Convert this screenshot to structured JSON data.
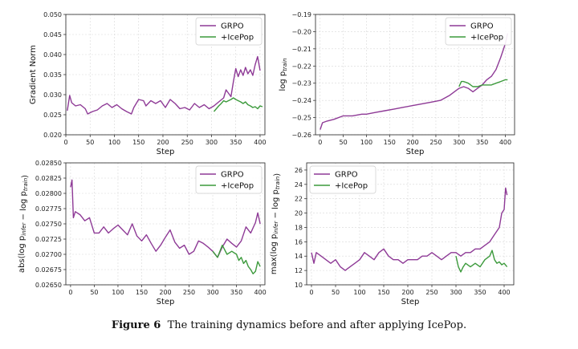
{
  "caption": {
    "label": "Figure 6",
    "text": "The training dynamics before and after applying IcePop."
  },
  "colors": {
    "grpo": "#8e3a96",
    "icepop": "#3c9a3c"
  },
  "chart_data": [
    {
      "type": "line",
      "xlabel": "Step",
      "ylabel": "Gradient Norm",
      "xlim": [
        0,
        410
      ],
      "ylim": [
        0.02,
        0.05
      ],
      "xticks": [
        0,
        50,
        100,
        150,
        200,
        250,
        300,
        350,
        400
      ],
      "yticks": [
        0.02,
        0.025,
        0.03,
        0.035,
        0.04,
        0.045,
        0.05
      ],
      "ytick_labels": [
        "0.020",
        "0.025",
        "0.030",
        "0.035",
        "0.040",
        "0.045",
        "0.050"
      ],
      "legend": "top-right",
      "series": [
        {
          "name": "GRPO",
          "color": "#8e3a96",
          "x": [
            3,
            8,
            12,
            20,
            30,
            40,
            45,
            55,
            65,
            75,
            85,
            95,
            105,
            115,
            125,
            135,
            140,
            150,
            160,
            165,
            175,
            185,
            195,
            205,
            215,
            225,
            235,
            245,
            255,
            265,
            275,
            285,
            295,
            305,
            315,
            325,
            330,
            340,
            345,
            350,
            355,
            360,
            365,
            370,
            375,
            380,
            385,
            390,
            395,
            400
          ],
          "y": [
            0.026,
            0.0298,
            0.028,
            0.0272,
            0.0275,
            0.0265,
            0.0252,
            0.0258,
            0.0262,
            0.0272,
            0.0278,
            0.0268,
            0.0275,
            0.0265,
            0.0258,
            0.0252,
            0.0268,
            0.0288,
            0.0285,
            0.0272,
            0.0285,
            0.0278,
            0.0285,
            0.0268,
            0.0288,
            0.0278,
            0.0265,
            0.0268,
            0.0262,
            0.0278,
            0.0268,
            0.0275,
            0.0265,
            0.0272,
            0.0282,
            0.0292,
            0.0312,
            0.0295,
            0.0332,
            0.0365,
            0.0345,
            0.0362,
            0.0348,
            0.0368,
            0.0352,
            0.0362,
            0.0348,
            0.0375,
            0.0395,
            0.036
          ]
        },
        {
          "name": "+IcePop",
          "color": "#3c9a3c",
          "x": [
            305,
            310,
            315,
            320,
            325,
            330,
            340,
            345,
            350,
            355,
            360,
            365,
            370,
            375,
            380,
            385,
            390,
            395,
            400,
            405
          ],
          "y": [
            0.0258,
            0.0265,
            0.0272,
            0.0278,
            0.0285,
            0.0282,
            0.0288,
            0.0292,
            0.0288,
            0.0285,
            0.0282,
            0.0278,
            0.0282,
            0.0275,
            0.0272,
            0.0268,
            0.027,
            0.0265,
            0.0272,
            0.027
          ]
        }
      ]
    },
    {
      "type": "line",
      "xlabel": "Step",
      "ylabel": "log p_train",
      "xlim": [
        -10,
        420
      ],
      "ylim": [
        -0.26,
        -0.19
      ],
      "xticks": [
        0,
        50,
        100,
        150,
        200,
        250,
        300,
        350,
        400
      ],
      "yticks": [
        -0.26,
        -0.25,
        -0.24,
        -0.23,
        -0.22,
        -0.21,
        -0.2,
        -0.19
      ],
      "ytick_labels": [
        "−0.26",
        "−0.25",
        "−0.24",
        "−0.23",
        "−0.22",
        "−0.21",
        "−0.20",
        "−0.19"
      ],
      "legend": "top-right",
      "series": [
        {
          "name": "GRPO",
          "color": "#8e3a96",
          "x": [
            0,
            5,
            15,
            30,
            50,
            70,
            90,
            100,
            120,
            140,
            160,
            180,
            200,
            220,
            240,
            260,
            280,
            300,
            310,
            320,
            330,
            340,
            350,
            360,
            370,
            380,
            390,
            400,
            405
          ],
          "y": [
            -0.257,
            -0.253,
            -0.252,
            -0.251,
            -0.249,
            -0.249,
            -0.248,
            -0.248,
            -0.247,
            -0.246,
            -0.245,
            -0.244,
            -0.243,
            -0.242,
            -0.241,
            -0.24,
            -0.237,
            -0.233,
            -0.232,
            -0.233,
            -0.235,
            -0.233,
            -0.231,
            -0.228,
            -0.226,
            -0.222,
            -0.215,
            -0.207,
            -0.201
          ]
        },
        {
          "name": "+IcePop",
          "color": "#3c9a3c",
          "x": [
            300,
            305,
            310,
            320,
            330,
            340,
            350,
            360,
            370,
            380,
            390,
            400,
            405
          ],
          "y": [
            -0.232,
            -0.229,
            -0.229,
            -0.23,
            -0.232,
            -0.232,
            -0.231,
            -0.231,
            -0.231,
            -0.23,
            -0.229,
            -0.228,
            -0.228
          ]
        }
      ]
    },
    {
      "type": "line",
      "xlabel": "Step",
      "ylabel": "abs(log p_infer − log p_train)",
      "xlim": [
        -10,
        410
      ],
      "ylim": [
        0.0265,
        0.0285
      ],
      "xticks": [
        0,
        50,
        100,
        150,
        200,
        250,
        300,
        350,
        400
      ],
      "yticks": [
        0.0265,
        0.02675,
        0.027,
        0.02725,
        0.0275,
        0.02775,
        0.028,
        0.02825,
        0.0285
      ],
      "ytick_labels": [
        "0.02650",
        "0.02675",
        "0.02700",
        "0.02725",
        "0.02750",
        "0.02775",
        "0.02800",
        "0.02825",
        "0.02850"
      ],
      "legend": "top-right",
      "series": [
        {
          "name": "GRPO",
          "color": "#8e3a96",
          "x": [
            0,
            3,
            6,
            10,
            20,
            30,
            40,
            50,
            60,
            70,
            80,
            90,
            100,
            110,
            120,
            130,
            140,
            150,
            160,
            170,
            180,
            190,
            200,
            210,
            220,
            230,
            240,
            250,
            260,
            270,
            280,
            290,
            300,
            310,
            320,
            330,
            340,
            350,
            360,
            370,
            380,
            390,
            395,
            400
          ],
          "y": [
            0.0281,
            0.02822,
            0.0276,
            0.0277,
            0.02765,
            0.02755,
            0.0276,
            0.02735,
            0.02735,
            0.02745,
            0.02735,
            0.02742,
            0.02748,
            0.0274,
            0.02732,
            0.0275,
            0.0273,
            0.02722,
            0.02732,
            0.02718,
            0.02705,
            0.02715,
            0.02728,
            0.0274,
            0.0272,
            0.0271,
            0.02715,
            0.027,
            0.02705,
            0.02722,
            0.02718,
            0.02712,
            0.02705,
            0.02695,
            0.02712,
            0.02725,
            0.02718,
            0.02712,
            0.02722,
            0.02745,
            0.02735,
            0.02752,
            0.02768,
            0.0275
          ]
        },
        {
          "name": "+IcePop",
          "color": "#3c9a3c",
          "x": [
            300,
            310,
            320,
            330,
            340,
            350,
            355,
            360,
            365,
            370,
            375,
            380,
            385,
            390,
            395,
            400
          ],
          "y": [
            0.02705,
            0.02695,
            0.02715,
            0.027,
            0.02705,
            0.027,
            0.0269,
            0.02695,
            0.02685,
            0.0269,
            0.0268,
            0.02675,
            0.02668,
            0.02672,
            0.02688,
            0.0268
          ]
        }
      ]
    },
    {
      "type": "line",
      "xlabel": "Step",
      "ylabel": "max(log p_infer − log p_train)",
      "xlim": [
        -10,
        420
      ],
      "ylim": [
        10,
        27
      ],
      "xticks": [
        0,
        50,
        100,
        150,
        200,
        250,
        300,
        350,
        400
      ],
      "yticks": [
        10,
        12,
        14,
        16,
        18,
        20,
        22,
        24,
        26
      ],
      "ytick_labels": [
        "10",
        "12",
        "14",
        "16",
        "18",
        "20",
        "22",
        "24",
        "26"
      ],
      "legend": "top-left",
      "series": [
        {
          "name": "GRPO",
          "color": "#8e3a96",
          "x": [
            0,
            5,
            10,
            20,
            30,
            40,
            50,
            60,
            70,
            80,
            90,
            100,
            110,
            120,
            130,
            140,
            150,
            160,
            170,
            180,
            190,
            200,
            210,
            220,
            230,
            240,
            250,
            260,
            270,
            280,
            290,
            300,
            310,
            320,
            330,
            340,
            350,
            360,
            370,
            380,
            390,
            395,
            400,
            403,
            406
          ],
          "y": [
            14.5,
            13.0,
            14.5,
            14.0,
            13.5,
            13.0,
            13.5,
            12.5,
            12.0,
            12.5,
            13.0,
            13.5,
            14.5,
            14.0,
            13.5,
            14.5,
            15.0,
            14.0,
            13.5,
            13.5,
            13.0,
            13.5,
            13.5,
            13.5,
            14.0,
            14.0,
            14.5,
            14.0,
            13.5,
            14.0,
            14.5,
            14.5,
            14.0,
            14.5,
            14.5,
            15.0,
            15.0,
            15.5,
            16.0,
            17.0,
            18.0,
            20.0,
            20.5,
            23.5,
            22.5
          ]
        },
        {
          "name": "+IcePop",
          "color": "#3c9a3c",
          "x": [
            300,
            305,
            310,
            315,
            320,
            330,
            340,
            350,
            360,
            370,
            375,
            380,
            385,
            390,
            395,
            400,
            406
          ],
          "y": [
            14.0,
            12.5,
            11.8,
            12.5,
            13.0,
            12.5,
            13.0,
            12.5,
            13.5,
            14.0,
            14.8,
            13.5,
            13.0,
            13.2,
            12.8,
            13.0,
            12.5
          ]
        }
      ]
    }
  ]
}
